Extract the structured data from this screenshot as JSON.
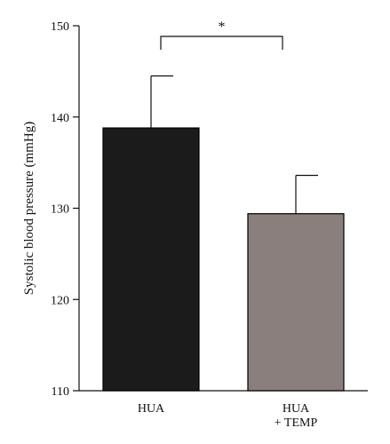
{
  "chart_data": {
    "type": "bar",
    "title": "",
    "xlabel": "",
    "ylabel": "Systolic blood pressure (mmHg)",
    "categories": [
      [
        "HUA"
      ],
      [
        "HUA",
        "+ TEMP"
      ]
    ],
    "values": [
      138.8,
      129.4
    ],
    "errors": [
      5.7,
      4.2
    ],
    "ylim": [
      110,
      150
    ],
    "yticks": [
      110,
      120,
      130,
      140,
      150
    ],
    "grid": false,
    "colors": [
      "#1b1b1b",
      "#8a7f7c"
    ],
    "significance": {
      "from": 0,
      "to": 1,
      "label": "*"
    }
  }
}
